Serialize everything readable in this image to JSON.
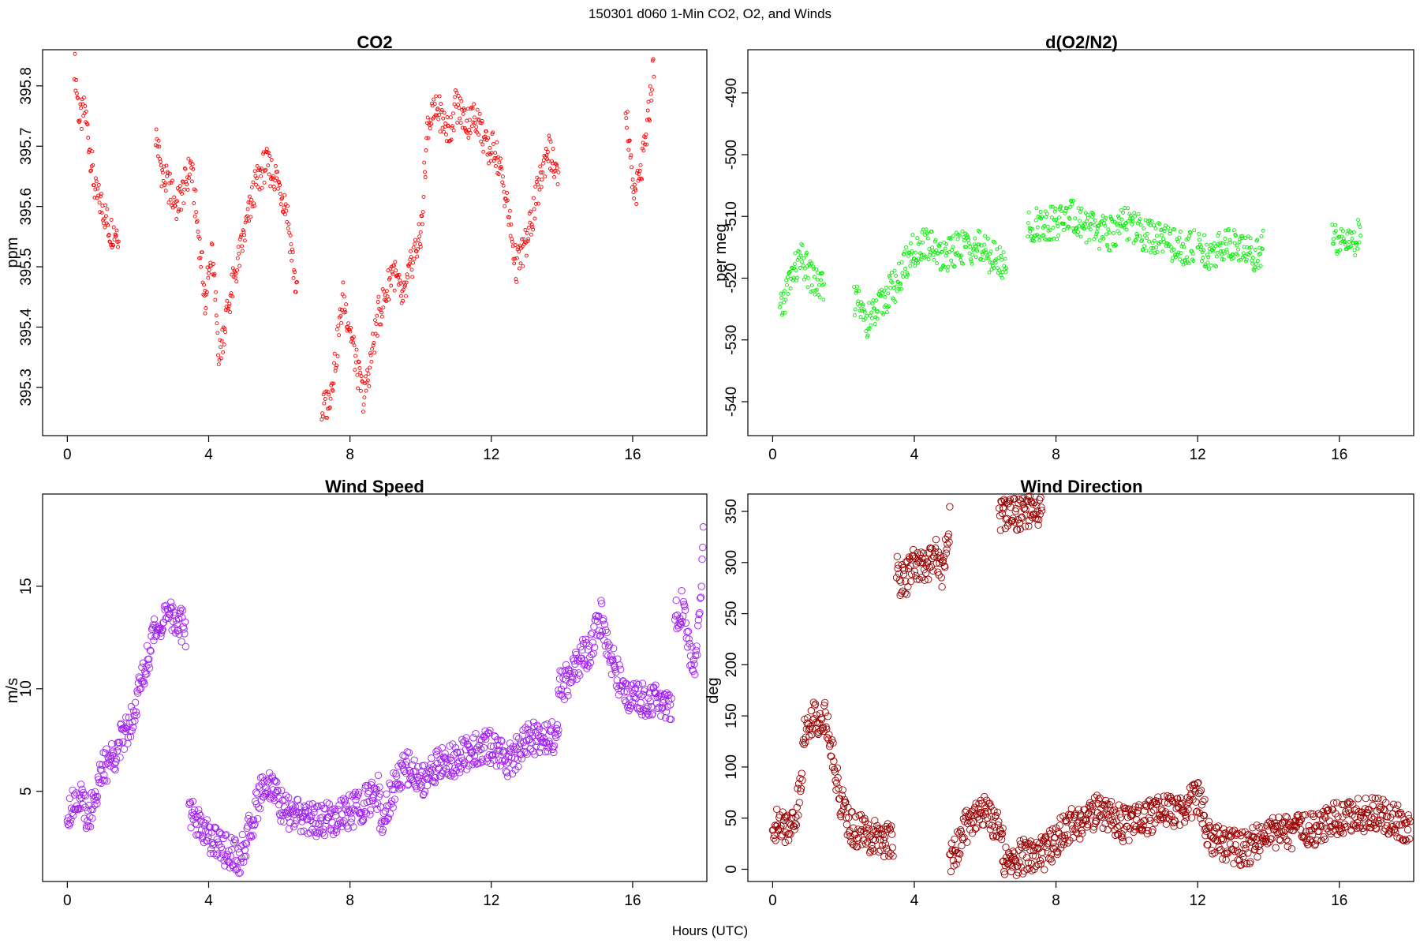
{
  "suptitle": "150301   d060   1-Min CO2, O2, and Winds",
  "xlabel": "Hours (UTC)",
  "chart_data": [
    {
      "type": "scatter",
      "title": "CO2",
      "ylabel": "ppm",
      "color": "#ff0000",
      "xlim": [
        -0.7,
        18.1
      ],
      "ylim": [
        395.22,
        395.86
      ],
      "xticks": [
        0,
        4,
        8,
        12,
        16
      ],
      "yticks": [
        395.3,
        395.4,
        395.5,
        395.6,
        395.7,
        395.8
      ],
      "segments": [
        {
          "x": [
            0.2,
            0.35,
            0.5,
            0.65,
            0.8,
            1.0,
            1.2,
            1.45
          ],
          "y": [
            395.84,
            395.74,
            395.76,
            395.69,
            395.62,
            395.6,
            395.56,
            395.56
          ]
        },
        {
          "x": [
            2.5,
            2.7,
            2.9,
            3.1,
            3.3,
            3.5,
            3.7,
            3.9
          ],
          "y": [
            395.72,
            395.65,
            395.63,
            395.6,
            395.63,
            395.67,
            395.56,
            395.45
          ]
        },
        {
          "x": [
            3.9,
            4.1,
            4.3,
            4.5,
            4.8,
            5.0,
            5.3,
            5.6,
            5.9,
            6.2,
            6.5
          ],
          "y": [
            395.45,
            395.52,
            395.35,
            395.42,
            395.5,
            395.55,
            395.63,
            395.67,
            395.65,
            395.6,
            395.45
          ]
        },
        {
          "x": [
            7.2,
            7.4,
            7.6,
            7.8,
            8.0,
            8.2,
            8.4,
            8.6,
            8.8,
            9.0,
            9.2,
            9.5,
            9.8,
            10.0
          ],
          "y": [
            395.26,
            395.28,
            395.35,
            395.45,
            395.4,
            395.33,
            395.28,
            395.35,
            395.42,
            395.45,
            395.5,
            395.44,
            395.52,
            395.55
          ]
        },
        {
          "x": [
            10.0,
            10.2,
            10.5,
            10.8,
            11.0,
            11.3,
            11.6,
            11.9,
            12.1,
            12.4,
            12.7,
            13.0,
            13.3,
            13.6,
            13.9
          ],
          "y": [
            395.55,
            395.74,
            395.76,
            395.72,
            395.77,
            395.74,
            395.75,
            395.69,
            395.7,
            395.62,
            395.5,
            395.54,
            395.62,
            395.7,
            395.64
          ]
        },
        {
          "x": [
            15.8,
            16.0,
            16.2,
            16.4,
            16.6
          ],
          "y": [
            395.78,
            395.62,
            395.64,
            395.72,
            395.84
          ]
        }
      ]
    },
    {
      "type": "scatter",
      "title": "d(O2/N2)",
      "ylabel": "per meg",
      "color": "#00ee00",
      "xlim": [
        -0.7,
        18.1
      ],
      "ylim": [
        -545.5,
        -483.0
      ],
      "xticks": [
        0,
        4,
        8,
        12,
        16
      ],
      "yticks": [
        -540,
        -530,
        -520,
        -510,
        -500,
        -490
      ],
      "segments": [
        {
          "x": [
            0.2,
            0.5,
            0.8,
            1.1,
            1.45
          ],
          "y": [
            -526,
            -520,
            -517,
            -520,
            -522
          ]
        },
        {
          "x": [
            2.3,
            2.6,
            2.9,
            3.2,
            3.6,
            3.9
          ],
          "y": [
            -523,
            -527,
            -526,
            -523,
            -520,
            -516
          ]
        },
        {
          "x": [
            3.9,
            4.3,
            4.8,
            5.3,
            5.8,
            6.3,
            6.6
          ],
          "y": [
            -516,
            -514,
            -517,
            -515,
            -515,
            -517,
            -518
          ]
        },
        {
          "x": [
            7.2,
            7.6,
            8.0,
            8.5,
            9.0,
            9.5,
            10.0,
            10.5,
            11.0,
            11.5,
            11.9
          ],
          "y": [
            -512,
            -511,
            -511,
            -510,
            -512,
            -513,
            -511,
            -513,
            -514,
            -515,
            -515
          ]
        },
        {
          "x": [
            12.0,
            12.4,
            12.8,
            13.2,
            13.6,
            13.85
          ],
          "y": [
            -515,
            -516,
            -514,
            -515,
            -516,
            -515
          ]
        },
        {
          "x": [
            15.8,
            16.1,
            16.4,
            16.6
          ],
          "y": [
            -512,
            -515,
            -514,
            -513
          ]
        }
      ]
    },
    {
      "type": "scatter",
      "title": "Wind Speed",
      "ylabel": "m/s",
      "color": "#a020f0",
      "xlim": [
        -0.7,
        18.1
      ],
      "ylim": [
        0.6,
        19.5
      ],
      "xticks": [
        0,
        4,
        8,
        12,
        16
      ],
      "yticks": [
        5,
        10,
        15
      ],
      "segments": [
        {
          "x": [
            0.0,
            0.3,
            0.6,
            1.0,
            1.4,
            1.8,
            2.2,
            2.5,
            2.8,
            3.1,
            3.35
          ],
          "y": [
            4.0,
            4.8,
            3.8,
            6.0,
            7.0,
            8.5,
            11.0,
            13.0,
            13.5,
            13.4,
            12.8
          ]
        },
        {
          "x": [
            3.45,
            3.7,
            4.0,
            4.3,
            4.6,
            4.9,
            5.2,
            5.5,
            5.8,
            6.1,
            6.5,
            7.0,
            7.5,
            8.0,
            8.5,
            8.85
          ],
          "y": [
            4.0,
            3.5,
            2.8,
            2.4,
            2.0,
            1.8,
            3.3,
            5.2,
            5.4,
            4.0,
            3.8,
            3.6,
            3.7,
            4.0,
            4.5,
            5.0
          ]
        },
        {
          "x": [
            8.85,
            9.2,
            9.6,
            10.0,
            10.5,
            11.0,
            11.5,
            12.0,
            12.5,
            13.0,
            13.5,
            13.9
          ],
          "y": [
            3.5,
            5.0,
            6.2,
            5.5,
            6.3,
            6.5,
            7.0,
            7.2,
            6.5,
            7.5,
            7.8,
            7.5
          ]
        },
        {
          "x": [
            13.9,
            14.2,
            14.5,
            14.8,
            15.1,
            15.4,
            15.7,
            16.0,
            16.4,
            16.8,
            17.1
          ],
          "y": [
            10.0,
            10.5,
            11.5,
            12.0,
            13.5,
            11.5,
            10.0,
            9.5,
            9.5,
            9.3,
            9.2
          ]
        },
        {
          "x": [
            17.2,
            17.4,
            17.6,
            17.8,
            18.0
          ],
          "y": [
            13.5,
            14.0,
            12.0,
            11.0,
            17.5
          ]
        }
      ]
    },
    {
      "type": "scatter",
      "title": "Wind Direction",
      "ylabel": "deg",
      "color": "#990000",
      "xlim": [
        -0.7,
        18.1
      ],
      "ylim": [
        -12,
        367
      ],
      "xticks": [
        0,
        4,
        8,
        12,
        16
      ],
      "yticks": [
        0,
        50,
        100,
        150,
        200,
        250,
        300,
        350
      ],
      "segments": [
        {
          "x": [
            0.0,
            0.3,
            0.6,
            0.8,
            0.9,
            1.1,
            1.3,
            1.5,
            1.7,
            1.9,
            2.2,
            2.6,
            3.0,
            3.4
          ],
          "y": [
            45,
            40,
            48,
            80,
            140,
            148,
            148,
            150,
            110,
            70,
            40,
            35,
            30,
            28
          ]
        },
        {
          "x": [
            3.5,
            3.7,
            4.0,
            4.2,
            4.4,
            4.6,
            4.8,
            5.0
          ],
          "y": [
            290,
            280,
            300,
            295,
            300,
            310,
            290,
            340
          ]
        },
        {
          "x": [
            5.0,
            5.3,
            5.6,
            5.9,
            6.2,
            6.5
          ],
          "y": [
            5,
            30,
            50,
            58,
            50,
            30
          ]
        },
        {
          "x": [
            6.5,
            6.9,
            7.3,
            7.7,
            8.0,
            8.4,
            8.8,
            9.2,
            9.6,
            10.0,
            10.5,
            11.0,
            11.5,
            12.0,
            12.2
          ],
          "y": [
            5,
            10,
            15,
            15,
            30,
            42,
            48,
            58,
            50,
            42,
            50,
            55,
            58,
            72,
            55
          ]
        },
        {
          "x": [
            12.2,
            12.6,
            13.0,
            13.4,
            13.8,
            14.5,
            15.0,
            15.5,
            16.0,
            16.5,
            17.0,
            17.5,
            18.0
          ],
          "y": [
            35,
            25,
            22,
            20,
            32,
            35,
            38,
            42,
            52,
            52,
            55,
            48,
            42
          ]
        },
        {
          "x": [
            6.4,
            7.6
          ],
          "y": [
            348,
            348
          ]
        }
      ]
    }
  ]
}
